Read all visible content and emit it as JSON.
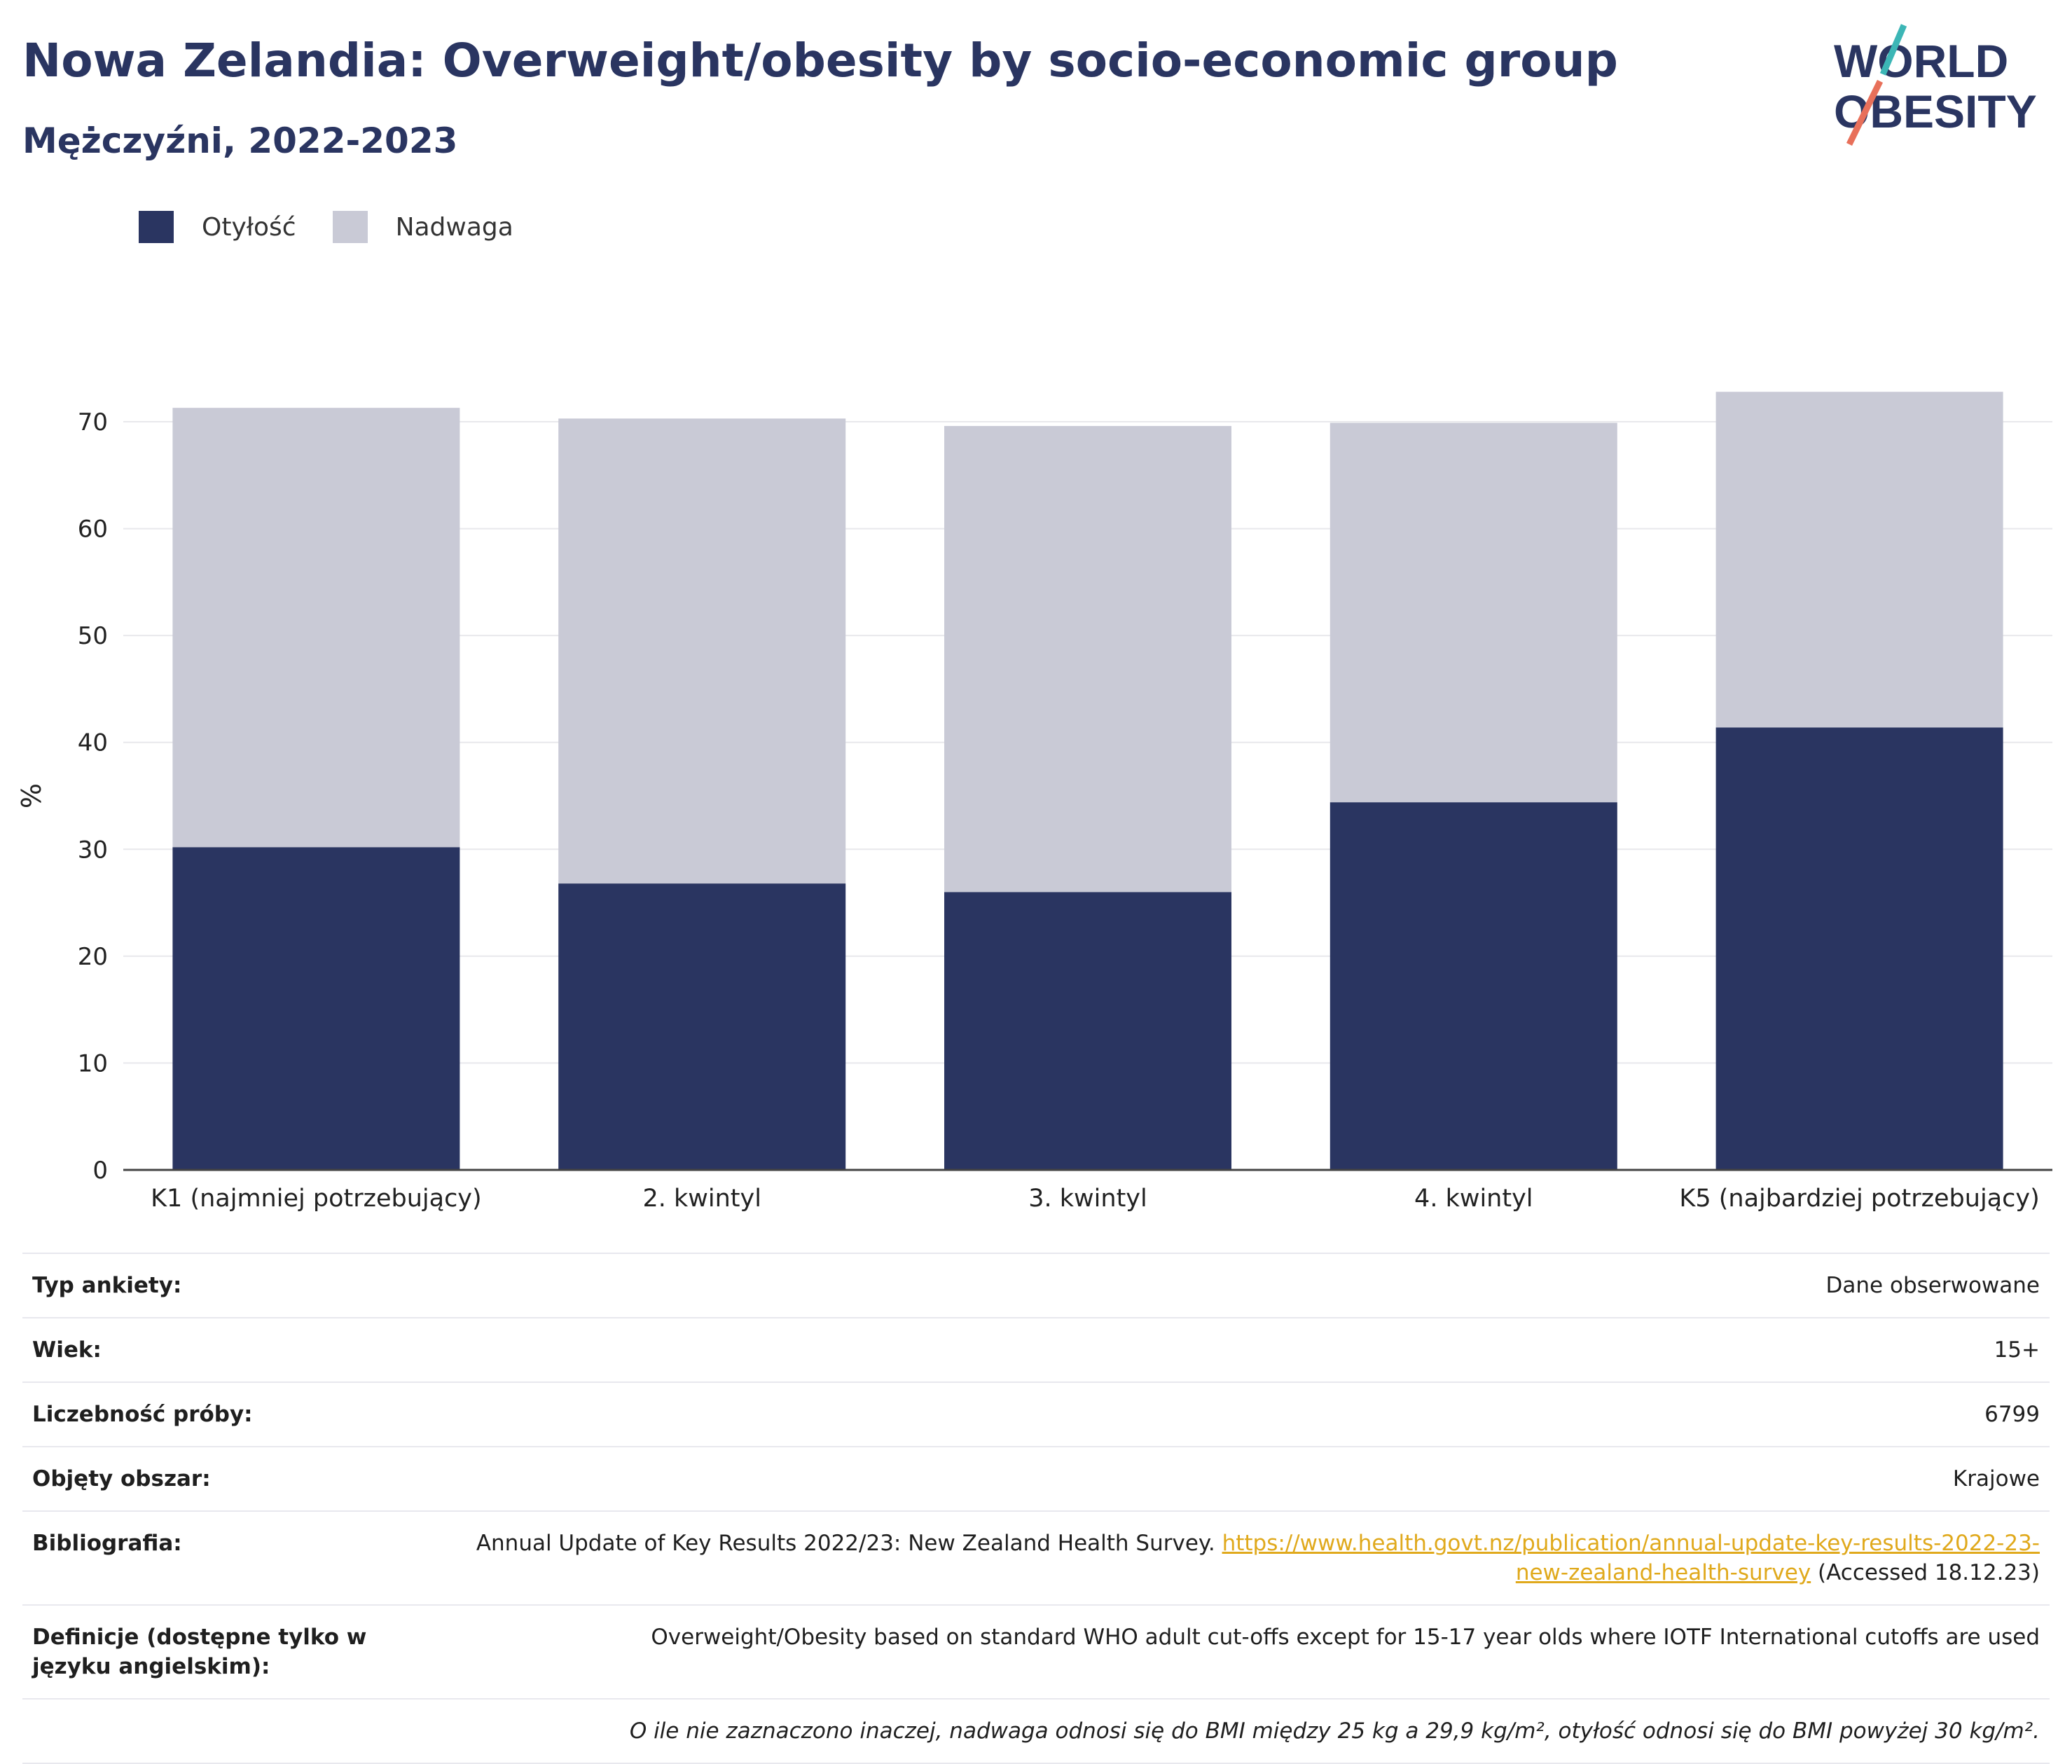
{
  "header": {
    "title": "Nowa Zelandia: Overweight/obesity by socio-economic group",
    "subtitle": "Mężczyźni, 2022-2023"
  },
  "logo": {
    "line1": "WORLD",
    "line2": "OBESITY",
    "accent_teal": "#3cb6b6",
    "accent_coral": "#e8705a"
  },
  "colors": {
    "obesity": "#2a3561",
    "overweight": "#c9cad6",
    "text_dark": "#2a3561",
    "grid": "#e8e8ec"
  },
  "chart_data": {
    "type": "bar",
    "stacked": true,
    "categories": [
      "K1 (najmniej potrzebujący)",
      "2. kwintyl",
      "3. kwintyl",
      "4. kwintyl",
      "K5 (najbardziej potrzebujący)"
    ],
    "series": [
      {
        "name": "Otyłość",
        "color": "#2a3561",
        "values": [
          30.2,
          26.8,
          26.0,
          34.4,
          41.4
        ]
      },
      {
        "name": "Nadwaga",
        "color": "#c9cad6",
        "values": [
          41.1,
          43.5,
          43.6,
          35.5,
          31.4
        ]
      }
    ],
    "ylabel": "%",
    "ylim": [
      0,
      75
    ],
    "yticks": [
      0,
      10,
      20,
      30,
      40,
      50,
      60,
      70
    ],
    "grid": true,
    "legend": "top-left"
  },
  "meta": [
    {
      "key": "Typ ankiety:",
      "value": "Dane obserwowane"
    },
    {
      "key": "Wiek:",
      "value": "15+"
    },
    {
      "key": "Liczebność próby:",
      "value": "6799"
    },
    {
      "key": "Objęty obszar:",
      "value": "Krajowe"
    }
  ],
  "bibliography": {
    "key": "Bibliografia:",
    "text": "Annual Update of Key Results 2022/23: New Zealand Health Survey.",
    "link": "https://www.health.govt.nz/publication/annual-update-key-results-2022-23-new-zealand-health-survey",
    "accessed": "(Accessed 18.12.23)"
  },
  "definitions": {
    "key": "Definicje (dostępne tylko w języku angielskim):",
    "value": "Overweight/Obesity based on standard WHO adult cut-offs except for 15-17 year olds where IOTF International cutoffs are used"
  },
  "note": "O ile nie zaznaczono inaczej, nadwaga odnosi się do BMI między 25 kg a 29,9 kg/m², otyłość odnosi się do BMI powyżej 30 kg/m²."
}
